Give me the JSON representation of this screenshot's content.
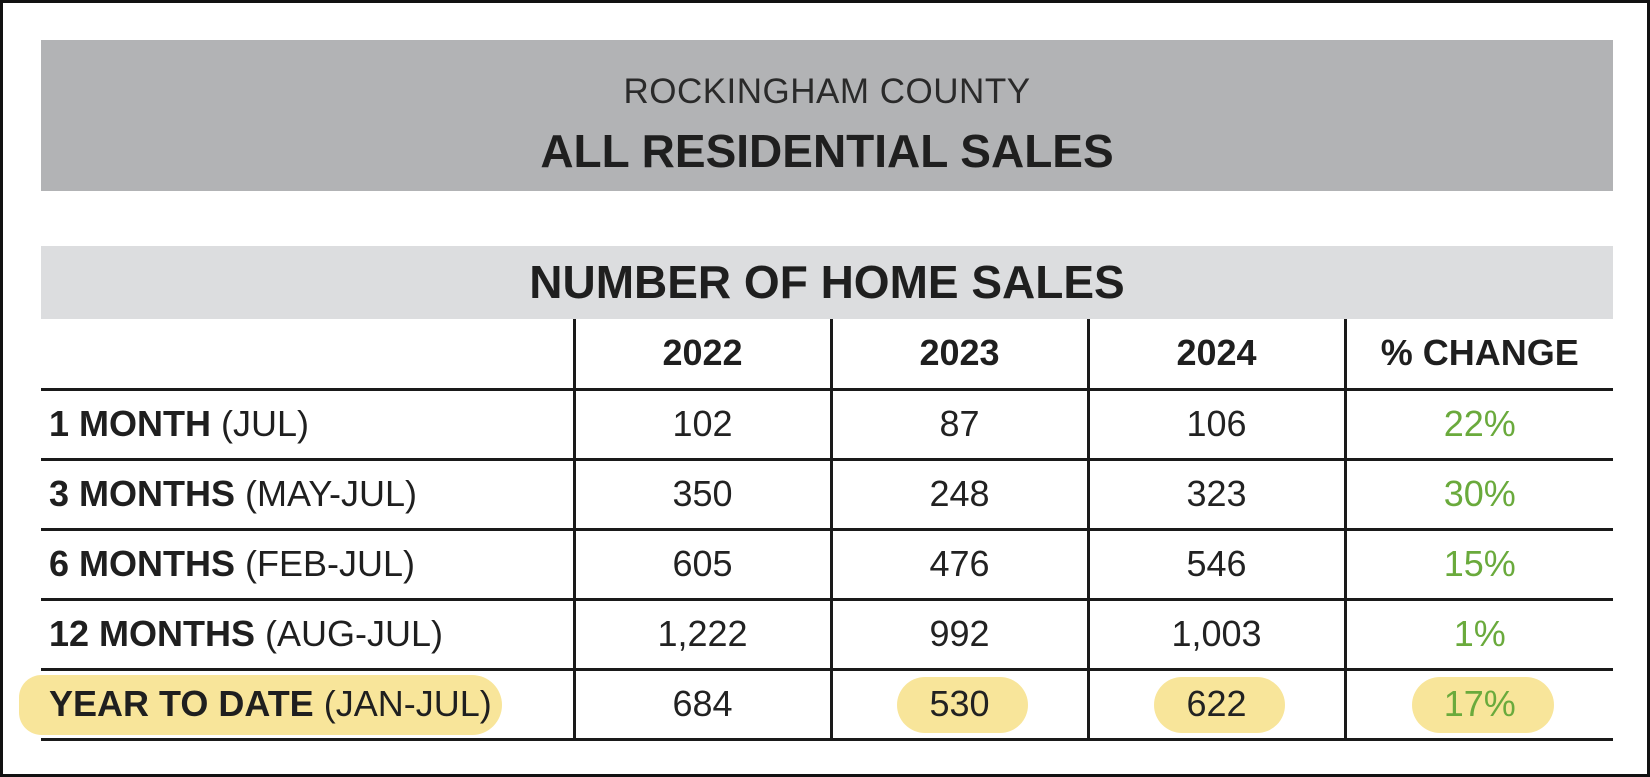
{
  "banner": {
    "county": "ROCKINGHAM COUNTY",
    "title": "ALL RESIDENTIAL SALES"
  },
  "section_title": "NUMBER OF HOME SALES",
  "table": {
    "headers": [
      "",
      "2022",
      "2023",
      "2024",
      "% CHANGE"
    ],
    "rows": [
      {
        "label_bold": "1 MONTH",
        "label_rest": " (JUL)",
        "v2022": "102",
        "v2023": "87",
        "v2024": "106",
        "change": "22%"
      },
      {
        "label_bold": "3 MONTHS",
        "label_rest": " (MAY-JUL)",
        "v2022": "350",
        "v2023": "248",
        "v2024": "323",
        "change": "30%"
      },
      {
        "label_bold": "6 MONTHS",
        "label_rest": " (FEB-JUL)",
        "v2022": "605",
        "v2023": "476",
        "v2024": "546",
        "change": "15%"
      },
      {
        "label_bold": "12 MONTHS",
        "label_rest": " (AUG-JUL)",
        "v2022": "1,222",
        "v2023": "992",
        "v2024": "1,003",
        "change": "1%"
      },
      {
        "label_bold": "YEAR TO DATE",
        "label_rest": " (JAN-JUL)",
        "v2022": "684",
        "v2023": "530",
        "v2024": "622",
        "change": "17%"
      }
    ]
  },
  "colors": {
    "banner_bg": "#b2b3b5",
    "section_bg": "#dcdddf",
    "positive_change": "#6aaa3c",
    "highlight": "#f8e59a"
  }
}
